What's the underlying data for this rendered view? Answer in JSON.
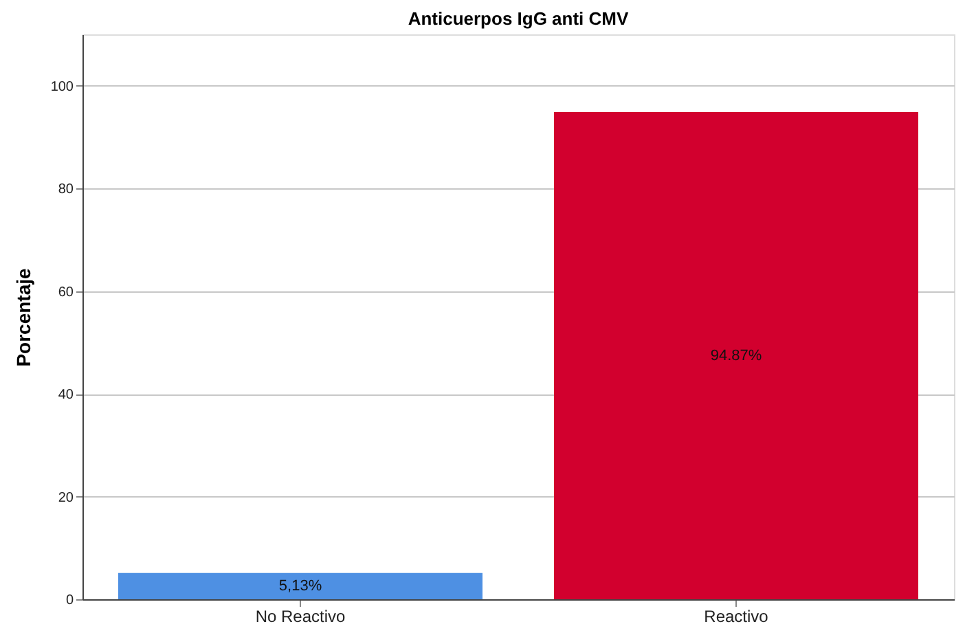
{
  "chart_data": {
    "type": "bar",
    "title": "Anticuerpos IgG anti CMV",
    "ylabel": "Porcentaje",
    "categories": [
      "No Reactivo",
      "Reactivo"
    ],
    "values": [
      5.13,
      94.87
    ],
    "colors": [
      "#4e90e3",
      "#d2002e"
    ],
    "value_labels": [
      "5,13%",
      "94.87%"
    ],
    "ylim": [
      0,
      110
    ],
    "yticks": [
      0,
      20,
      40,
      60,
      80,
      100
    ],
    "grid": "y",
    "legend": false
  }
}
